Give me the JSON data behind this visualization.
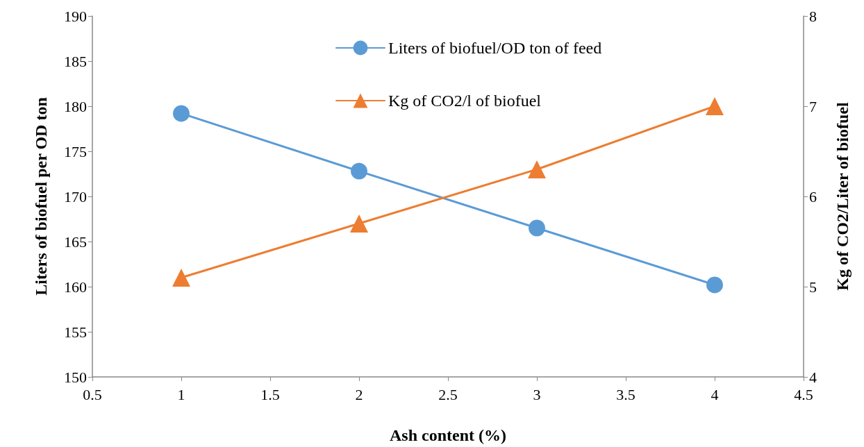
{
  "chart_data": {
    "type": "line",
    "xlabel": "Ash content (%)",
    "ylabel": "Liters of biofuel per OD ton",
    "y2label": "Kg of CO2/Liter of biofuel",
    "x": [
      1,
      2,
      3,
      4
    ],
    "series": [
      {
        "name": "Liters of biofuel/OD ton of feed",
        "color": "#5b9bd5",
        "values": [
          179.2,
          172.8,
          166.5,
          160.2
        ],
        "marker": "circle"
      },
      {
        "name": "Kg of CO2/l of biofuel",
        "color": "#ed7d31",
        "values": [
          5.1,
          5.7,
          6.3,
          7.0
        ],
        "marker": "triangle",
        "axis": "y2"
      }
    ],
    "xlim": [
      0.5,
      4.5
    ],
    "xticks": [
      0.5,
      1,
      1.5,
      2,
      2.5,
      3,
      3.5,
      4,
      4.5
    ],
    "ylim": [
      150,
      190
    ],
    "yticks": [
      150,
      155,
      160,
      165,
      170,
      175,
      180,
      185,
      190
    ],
    "y2lim": [
      4,
      8
    ],
    "y2ticks": [
      4,
      5,
      6,
      7,
      8
    ],
    "grid": false,
    "legend": "top",
    "line_style": "solid"
  }
}
